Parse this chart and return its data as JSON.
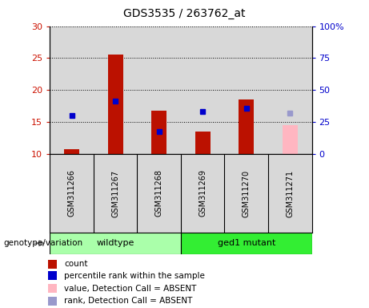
{
  "title": "GDS3535 / 263762_at",
  "samples": [
    "GSM311266",
    "GSM311267",
    "GSM311268",
    "GSM311269",
    "GSM311270",
    "GSM311271"
  ],
  "ylim_left": [
    10,
    30
  ],
  "yticks_left": [
    10,
    15,
    20,
    25,
    30
  ],
  "ylim_right": [
    0,
    100
  ],
  "yticks_right": [
    0,
    25,
    50,
    75,
    100
  ],
  "ytick_right_labels": [
    "0",
    "25",
    "50",
    "75",
    "100%"
  ],
  "bar_bottom": 10,
  "counts": [
    10.7,
    25.5,
    16.8,
    13.5,
    18.5,
    null
  ],
  "ranks": [
    16.0,
    18.3,
    13.5,
    16.7,
    17.2,
    null
  ],
  "absent_values": [
    null,
    null,
    null,
    null,
    null,
    14.5
  ],
  "absent_ranks": [
    null,
    null,
    null,
    null,
    null,
    16.4
  ],
  "bar_color": "#bb1100",
  "bar_absent_color": "#ffb6c1",
  "rank_color": "#0000cc",
  "rank_absent_color": "#9999cc",
  "bar_width": 0.35,
  "grid_linestyle": ":",
  "grid_color": "#000000",
  "legend_items": [
    {
      "label": "count",
      "color": "#bb1100"
    },
    {
      "label": "percentile rank within the sample",
      "color": "#0000cc"
    },
    {
      "label": "value, Detection Call = ABSENT",
      "color": "#ffb6c1"
    },
    {
      "label": "rank, Detection Call = ABSENT",
      "color": "#9999cc"
    }
  ],
  "bg_plot": "#d8d8d8",
  "bg_figure": "#ffffff",
  "label_color_left": "#cc1100",
  "label_color_right": "#0000cc",
  "genotype_label": "genotype/variation",
  "group_label_wildtype": "wildtype",
  "group_label_mutant": "ged1 mutant",
  "wildtype_color": "#aaffaa",
  "mutant_color": "#33ee33",
  "title_fontsize": 10,
  "tick_fontsize": 8,
  "sample_fontsize": 7,
  "legend_fontsize": 7.5,
  "group_fontsize": 8
}
